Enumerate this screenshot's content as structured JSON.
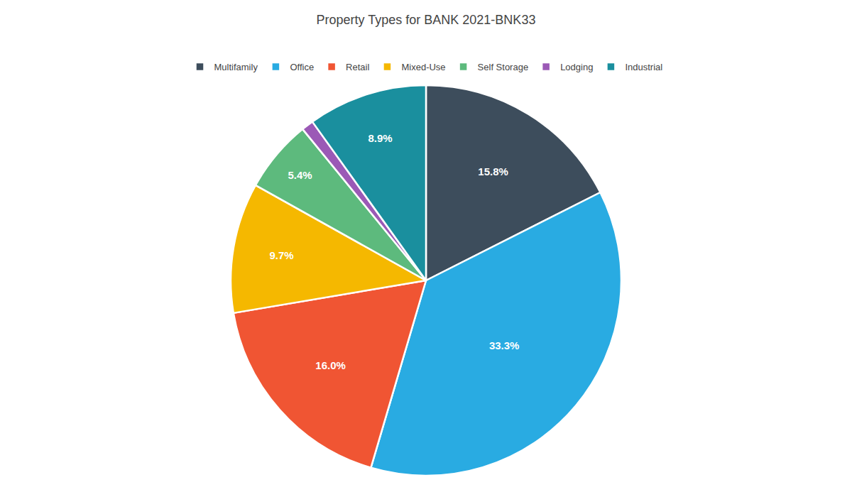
{
  "chart_data": {
    "type": "pie",
    "title": "Property Types for BANK 2021-BNK33",
    "categories": [
      "Multifamily",
      "Office",
      "Retail",
      "Mixed-Use",
      "Self Storage",
      "Lodging",
      "Industrial"
    ],
    "values": [
      15.8,
      33.3,
      16.0,
      9.7,
      5.4,
      0.9,
      8.9
    ],
    "value_labels": [
      "15.8%",
      "33.3%",
      "16.0%",
      "9.7%",
      "5.4%",
      null,
      "8.9%"
    ],
    "colors": [
      "#3d4d5c",
      "#29abe2",
      "#f05533",
      "#f5b800",
      "#5dba7d",
      "#9b59b6",
      "#1a8f9e"
    ],
    "data_labels": true,
    "legend": "upper center"
  }
}
